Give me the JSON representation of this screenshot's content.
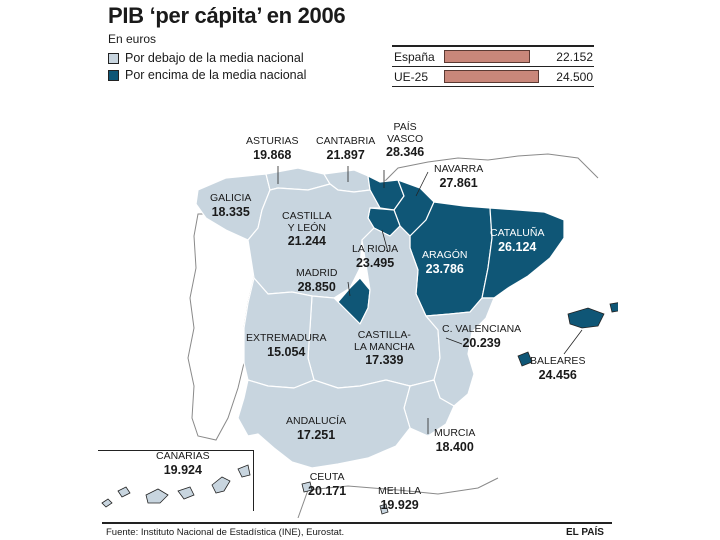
{
  "title": "PIB ‘per cápita’ en 2006",
  "subtitle": "En euros",
  "colors": {
    "below": "#c8d5df",
    "above": "#0f5676",
    "border": "#ffffff",
    "outline": "#8a8a8a",
    "bar": "#c9877a"
  },
  "legend": [
    {
      "label": "Por debajo de la media nacional",
      "color": "#c8d5df"
    },
    {
      "label": "Por encima de la media nacional",
      "color": "#0f5676"
    }
  ],
  "comparison": [
    {
      "label": "España",
      "value": "22.152",
      "fraction": 0.904
    },
    {
      "label": "UE-25",
      "value": "24.500",
      "fraction": 1.0
    }
  ],
  "regions": {
    "asturias": {
      "name": "ASTURIAS",
      "value": "19.868",
      "status": "below"
    },
    "cantabria": {
      "name": "CANTABRIA",
      "value": "21.897",
      "status": "below"
    },
    "pais_vasco": {
      "name": "PAÍS VASCO",
      "value": "28.346",
      "status": "above"
    },
    "navarra": {
      "name": "NAVARRA",
      "value": "27.861",
      "status": "above"
    },
    "galicia": {
      "name": "GALICIA",
      "value": "18.335",
      "status": "below"
    },
    "castilla_leon": {
      "name": "CASTILLA Y LEÓN",
      "value": "21.244",
      "status": "below"
    },
    "la_rioja": {
      "name": "LA RIOJA",
      "value": "23.495",
      "status": "above"
    },
    "aragon": {
      "name": "ARAGÓN",
      "value": "23.786",
      "status": "above"
    },
    "cataluna": {
      "name": "CATALUÑA",
      "value": "26.124",
      "status": "above"
    },
    "madrid": {
      "name": "MADRID",
      "value": "28.850",
      "status": "above"
    },
    "extremadura": {
      "name": "EXTREMADURA",
      "value": "15.054",
      "status": "below"
    },
    "castilla_la_mancha": {
      "name": "CASTILLA-LA MANCHA",
      "value": "17.339",
      "status": "below"
    },
    "c_valenciana": {
      "name": "C. VALENCIANA",
      "value": "20.239",
      "status": "below"
    },
    "baleares": {
      "name": "BALEARES",
      "value": "24.456",
      "status": "above"
    },
    "andalucia": {
      "name": "ANDALUCÍA",
      "value": "17.251",
      "status": "below"
    },
    "murcia": {
      "name": "MURCIA",
      "value": "18.400",
      "status": "below"
    },
    "canarias": {
      "name": "CANARIAS",
      "value": "19.924",
      "status": "below"
    },
    "ceuta": {
      "name": "CEUTA",
      "value": "20.171",
      "status": "below"
    },
    "melilla": {
      "name": "MELILLA",
      "value": "19.929",
      "status": "below"
    }
  },
  "labels": {
    "castilla_leon_1": "CASTILLA",
    "castilla_leon_2": "Y LEÓN",
    "pais_vasco_1": "PAÍS",
    "pais_vasco_2": "VASCO",
    "castilla_la_mancha_1": "CASTILLA-",
    "castilla_la_mancha_2": "LA MANCHA"
  },
  "source": "Fuente: Instituto Nacional de Estadística (INE), Eurostat.",
  "brand": "EL PAÍS"
}
